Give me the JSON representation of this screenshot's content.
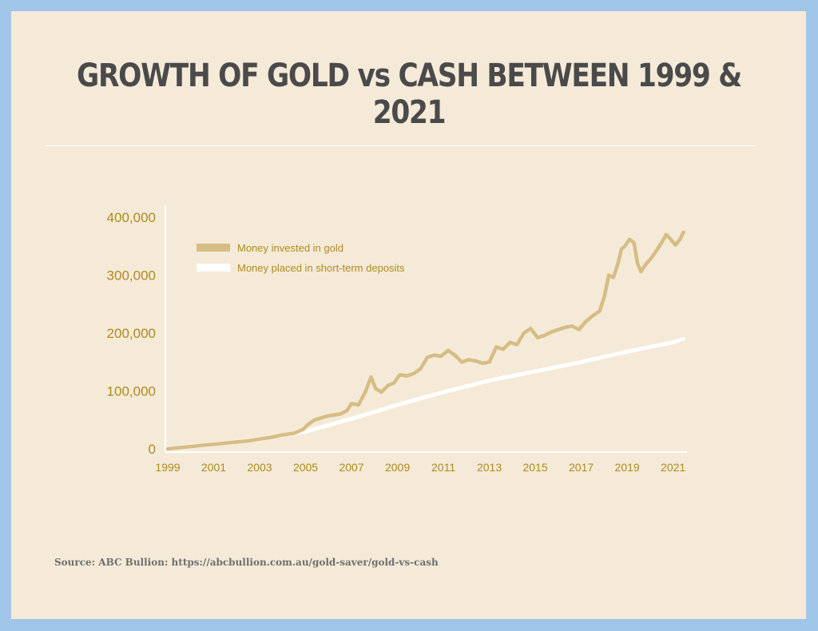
{
  "title": "GROWTH OF GOLD vs CASH BETWEEN 1999 & 2021",
  "source": "Source: ABC Bullion: https://abcbullion.com.au/gold-saver/gold-vs-cash",
  "colors": {
    "background_frame": "#9fc6e8",
    "card": "#f4ead7",
    "gold_series": "#d6bd85",
    "cash_series": "#ffffff",
    "tick_text": "#b08a1e",
    "title_text": "#4a4a4a"
  },
  "chart_data": {
    "type": "line",
    "title": "GROWTH OF GOLD vs CASH BETWEEN 1999 & 2021",
    "xlabel": "",
    "ylabel": "",
    "xlim": [
      1999,
      2021.5
    ],
    "ylim": [
      0,
      400000
    ],
    "y_ticks": [
      "0",
      "100,000",
      "200,000",
      "300,000",
      "400,000"
    ],
    "y_tick_values": [
      0,
      100000,
      200000,
      300000,
      400000
    ],
    "x_ticks": [
      "1999",
      "2001",
      "2003",
      "2005",
      "2007",
      "2009",
      "2011",
      "2013",
      "2015",
      "2017",
      "2019",
      "2021"
    ],
    "x_tick_values": [
      1999,
      2001,
      2003,
      2005,
      2007,
      2009,
      2011,
      2013,
      2015,
      2017,
      2019,
      2021
    ],
    "grid": false,
    "legend_position": "top-left",
    "series": [
      {
        "name": "Money invested in gold",
        "color": "#d6bd85",
        "x": [
          1999,
          1999.5,
          2000,
          2000.5,
          2001,
          2001.5,
          2002,
          2002.5,
          2003,
          2003.5,
          2004,
          2004.5,
          2004.9,
          2005.1,
          2005.4,
          2005.8,
          2006.1,
          2006.5,
          2006.8,
          2007,
          2007.3,
          2007.6,
          2007.85,
          2008.05,
          2008.3,
          2008.6,
          2008.85,
          2009.1,
          2009.4,
          2009.7,
          2010,
          2010.3,
          2010.6,
          2010.9,
          2011.2,
          2011.5,
          2011.8,
          2012.1,
          2012.4,
          2012.7,
          2013,
          2013.3,
          2013.6,
          2013.9,
          2014.2,
          2014.5,
          2014.8,
          2015.1,
          2015.4,
          2015.7,
          2016,
          2016.3,
          2016.6,
          2016.9,
          2017.2,
          2017.5,
          2017.8,
          2018,
          2018.2,
          2018.4,
          2018.6,
          2018.75,
          2018.9,
          2019.1,
          2019.3,
          2019.45,
          2019.6,
          2019.8,
          2020.1,
          2020.3,
          2020.5,
          2020.7,
          2020.9,
          2021.1,
          2021.3,
          2021.45
        ],
        "values": [
          0,
          2000,
          4000,
          6000,
          8000,
          10000,
          12000,
          14000,
          17000,
          20000,
          24000,
          27000,
          34000,
          42000,
          50000,
          55000,
          58000,
          60000,
          66000,
          78000,
          76000,
          98000,
          124000,
          104000,
          98000,
          110000,
          114000,
          128000,
          126000,
          130000,
          138000,
          158000,
          162000,
          160000,
          170000,
          162000,
          150000,
          154000,
          152000,
          148000,
          150000,
          176000,
          172000,
          184000,
          180000,
          200000,
          208000,
          192000,
          196000,
          202000,
          206000,
          210000,
          212000,
          206000,
          220000,
          230000,
          238000,
          262000,
          300000,
          296000,
          320000,
          345000,
          350000,
          362000,
          356000,
          320000,
          306000,
          318000,
          332000,
          344000,
          356000,
          370000,
          362000,
          352000,
          362000,
          374000
        ]
      },
      {
        "name": "Money placed in short-term deposits",
        "color": "#ffffff",
        "x": [
          1999,
          2001,
          2003,
          2005,
          2007,
          2009,
          2011,
          2013,
          2015,
          2017,
          2019,
          2021,
          2021.45
        ],
        "values": [
          0,
          8000,
          17000,
          30000,
          52000,
          76000,
          98000,
          118000,
          134000,
          150000,
          168000,
          184000,
          190000
        ]
      }
    ]
  }
}
